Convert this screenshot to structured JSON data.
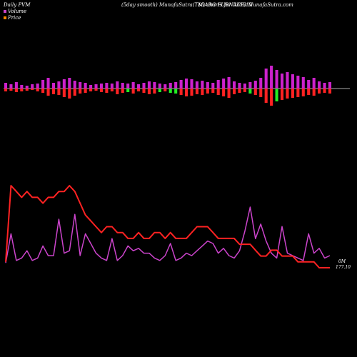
{
  "header": {
    "left": "Daily PVM",
    "center": "(5day smooth) MunafaSutra(TM) charts for 530615",
    "right": "(GARG FURNACE) MunafaSutra.com"
  },
  "legend": [
    {
      "label": "Volume",
      "color": "#cc44cc"
    },
    {
      "label": "Price",
      "color": "#ff8800"
    }
  ],
  "chart_data": [
    {
      "type": "bar",
      "name": "Volume",
      "up_values": [
        8,
        6,
        9,
        5,
        4,
        6,
        7,
        12,
        15,
        8,
        10,
        13,
        15,
        11,
        9,
        8,
        5,
        6,
        7,
        8,
        7,
        10,
        8,
        7,
        9,
        6,
        8,
        10,
        9,
        7,
        6,
        8,
        9,
        12,
        14,
        13,
        10,
        11,
        9,
        8,
        12,
        14,
        16,
        10,
        8,
        7,
        9,
        11,
        15,
        28,
        32,
        26,
        21,
        23,
        20,
        18,
        16,
        12,
        15,
        10,
        8,
        9
      ],
      "down_values": [
        4,
        3,
        5,
        4,
        3,
        2,
        4,
        6,
        10,
        8,
        9,
        12,
        14,
        10,
        7,
        6,
        4,
        3,
        5,
        6,
        4,
        8,
        6,
        5,
        7,
        4,
        6,
        8,
        7,
        5,
        4,
        6,
        7,
        9,
        11,
        10,
        8,
        9,
        7,
        6,
        9,
        11,
        13,
        8,
        6,
        5,
        7,
        9,
        12,
        20,
        24,
        18,
        16,
        14,
        13,
        12,
        11,
        9,
        10,
        7,
        6,
        7
      ],
      "down_colors": [
        "#ff2222",
        "#ff2222",
        "#ff2222",
        "#ff2222",
        "#ff2222",
        "#ff2222",
        "#ff2222",
        "#ff2222",
        "#ff2222",
        "#ff2222",
        "#ff2222",
        "#ff2222",
        "#ff2222",
        "#ff2222",
        "#ff2222",
        "#ff2222",
        "#ff2222",
        "#ff2222",
        "#ff2222",
        "#ff2222",
        "#ff2222",
        "#ff2222",
        "#ff2222",
        "#22ee22",
        "#ff2222",
        "#ff2222",
        "#ff2222",
        "#ff2222",
        "#ff2222",
        "#22ee22",
        "#ff2222",
        "#22ee22",
        "#22ee22",
        "#ff2222",
        "#ff2222",
        "#ff2222",
        "#ff2222",
        "#ff2222",
        "#ff2222",
        "#ff2222",
        "#ff2222",
        "#ff2222",
        "#ff2222",
        "#ff2222",
        "#ff2222",
        "#ff2222",
        "#22ee22",
        "#ff2222",
        "#ff2222",
        "#ff2222",
        "#ff2222",
        "#22ee22",
        "#ff2222",
        "#ff2222",
        "#ff2222",
        "#ff2222",
        "#ff2222",
        "#ff2222",
        "#ff2222",
        "#ff2222",
        "#ff2222",
        "#ff2222"
      ],
      "up_color": "#cc22cc"
    },
    {
      "type": "line",
      "name": "Price",
      "color": "#ff2222",
      "values": [
        178,
        191,
        190,
        189,
        190,
        189,
        189,
        188,
        189,
        189,
        190,
        190,
        191,
        190,
        188,
        186,
        185,
        184,
        183,
        184,
        184,
        183,
        183,
        182,
        182,
        183,
        182,
        182,
        183,
        183,
        182,
        183,
        182,
        182,
        182,
        183,
        184,
        184,
        184,
        183,
        182,
        182,
        182,
        182,
        181,
        181,
        181,
        180,
        179,
        179,
        180,
        180,
        179,
        179,
        179,
        178,
        178,
        178,
        178,
        177,
        177,
        177
      ]
    },
    {
      "type": "line",
      "name": "Volume (smoothed)",
      "color": "#cc44cc",
      "values": [
        2,
        14,
        3,
        4,
        7,
        3,
        4,
        9,
        5,
        5,
        20,
        6,
        7,
        22,
        5,
        14,
        10,
        6,
        4,
        3,
        12,
        3,
        5,
        9,
        7,
        8,
        6,
        6,
        4,
        3,
        5,
        10,
        3,
        4,
        6,
        5,
        7,
        9,
        11,
        10,
        6,
        8,
        5,
        4,
        7,
        15,
        25,
        12,
        18,
        11,
        6,
        4,
        17,
        6,
        5,
        4,
        3,
        14,
        6,
        8,
        4,
        5
      ]
    }
  ],
  "annotations": {
    "volume_label": "0M",
    "price_label": "177.10"
  }
}
